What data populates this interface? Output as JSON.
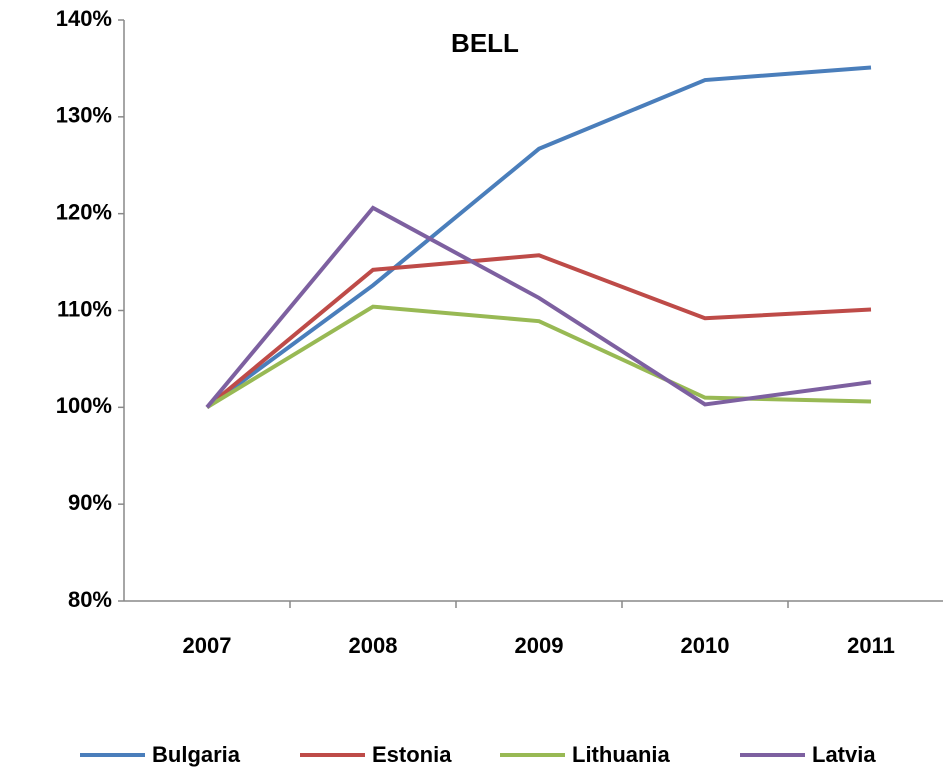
{
  "chart_data": {
    "type": "line",
    "title": "BELL",
    "categories": [
      "2007",
      "2008",
      "2009",
      "2010",
      "2011"
    ],
    "series": [
      {
        "name": "Bulgaria",
        "color": "#4a7ebb",
        "values": [
          100,
          112.6,
          126.7,
          133.8,
          135.1
        ]
      },
      {
        "name": "Estonia",
        "color": "#be4b48",
        "values": [
          100,
          114.2,
          115.7,
          109.2,
          110.1
        ]
      },
      {
        "name": "Lithuania",
        "color": "#98b954",
        "values": [
          100,
          110.4,
          108.9,
          101.0,
          100.6
        ]
      },
      {
        "name": "Latvia",
        "color": "#7d60a0",
        "values": [
          100,
          120.6,
          111.3,
          100.3,
          102.6
        ]
      }
    ],
    "ylim": [
      80,
      140
    ],
    "yticks": [
      {
        "value": 80,
        "label": "80%"
      },
      {
        "value": 90,
        "label": "90%"
      },
      {
        "value": 100,
        "label": "100%"
      },
      {
        "value": 110,
        "label": "110%"
      },
      {
        "value": 120,
        "label": "120%"
      },
      {
        "value": 130,
        "label": "130%"
      },
      {
        "value": 140,
        "label": "140%"
      }
    ],
    "grid": false,
    "legend": "bottom"
  }
}
